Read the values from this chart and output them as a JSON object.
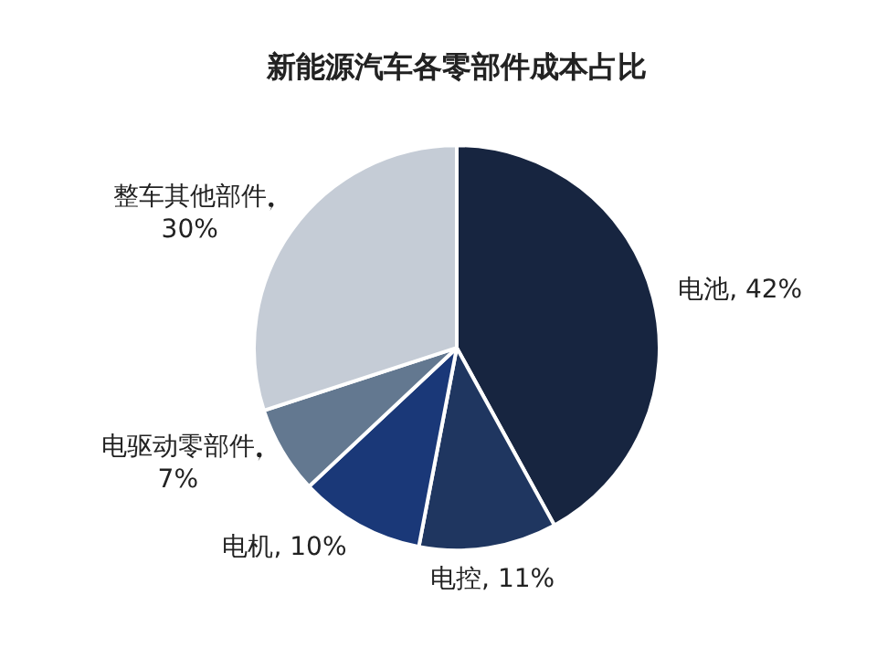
{
  "chart_data": {
    "type": "pie",
    "title": "新能源汽车各零部件成本占比",
    "categories": [
      "电池",
      "电控",
      "电机",
      "电驱动零部件",
      "整车其他部件"
    ],
    "values": [
      42,
      11,
      10,
      7,
      30
    ],
    "value_labels": [
      "42%",
      "11%",
      "10%",
      "7%",
      "30%"
    ],
    "colors": [
      "#172540",
      "#1f3660",
      "#1a3878",
      "#637890",
      "#c5ccd6"
    ],
    "legend": false
  }
}
